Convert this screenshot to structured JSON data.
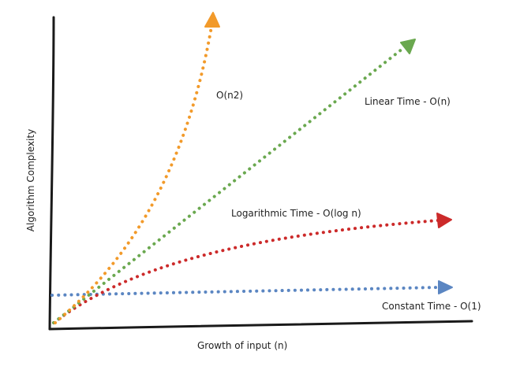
{
  "diagram": {
    "x_axis_label": "Growth of input (n)",
    "y_axis_label": "Algorithm Complexity",
    "curves": [
      {
        "label": "O(n2)",
        "color": "#f29a2a"
      },
      {
        "label": "Linear Time - O(n)",
        "color": "#6aa84f"
      },
      {
        "label": "Logarithmic Time - O(log n)",
        "color": "#cc2a2a"
      },
      {
        "label": "Constant Time - O(1)",
        "color": "#5b86c2"
      }
    ]
  }
}
